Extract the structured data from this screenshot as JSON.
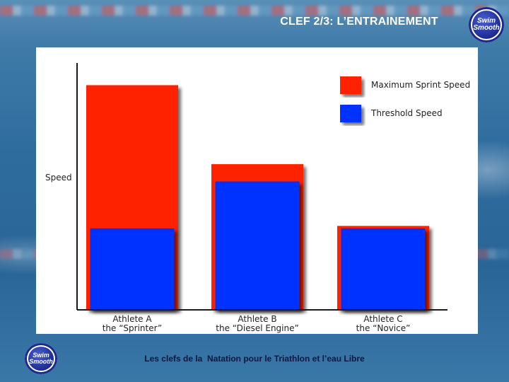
{
  "slide": {
    "title": "CLEF 2/3: L’ENTRAINEMENT",
    "footer": "Les clefs de la  Natation pour le Triathlon et l’eau Libre",
    "logo_text_line1": "Swim",
    "logo_text_line2": "Smooth"
  },
  "colors": {
    "max_sprint": "#ff2200",
    "threshold": "#0033ff",
    "axis": "#1a1a1a",
    "text": "#222222"
  },
  "chart_data": {
    "type": "bar",
    "ylabel": "Speed",
    "xlabel": "",
    "ylim": [
      0,
      100
    ],
    "categories": [
      [
        "Athlete A",
        "the “Sprinter”"
      ],
      [
        "Athlete B",
        "the “Diesel Engine”"
      ],
      [
        "Athlete C",
        "the “Novice”"
      ]
    ],
    "series": [
      {
        "name": "Maximum Sprint Speed",
        "color": "#ff2200",
        "values": [
          91,
          59,
          34
        ]
      },
      {
        "name": "Threshold Speed",
        "color": "#0033ff",
        "values": [
          33,
          52,
          33
        ]
      }
    ],
    "legend": "top-right",
    "grid": false
  }
}
